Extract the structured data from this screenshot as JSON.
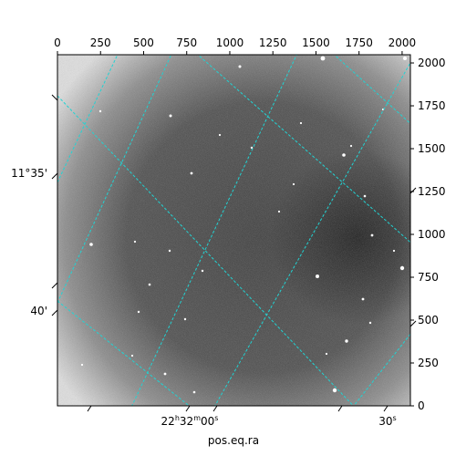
{
  "figure": {
    "xlabel": "pos.eq.ra",
    "pixel_axis": {
      "x_ticks": [
        "0",
        "250",
        "500",
        "750",
        "1000",
        "1250",
        "1500",
        "1750",
        "2000"
      ],
      "y_ticks": [
        "0",
        "250",
        "500",
        "750",
        "1000",
        "1250",
        "1500",
        "1750",
        "2000"
      ]
    },
    "wcs_axis": {
      "ra_ticks": [
        {
          "hours": "22",
          "minutes": "32",
          "seconds": "00",
          "text": "22h32m00s"
        },
        {
          "seconds": "30",
          "text": "30s"
        }
      ],
      "dec_ticks": [
        "11°35'",
        "40'"
      ]
    },
    "grid_color": "#22d3d3",
    "image_description_colors": {
      "background": "#d8d8d8",
      "dark_region": "#1a1a1a"
    }
  }
}
